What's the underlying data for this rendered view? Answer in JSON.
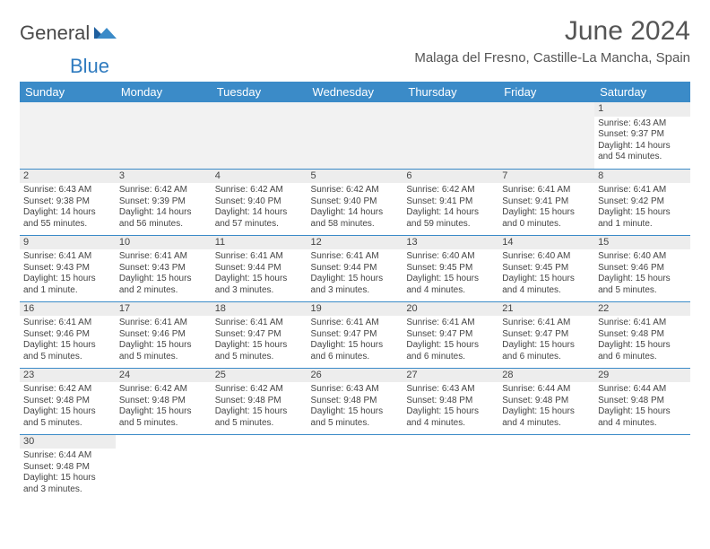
{
  "brand": {
    "name_a": "General",
    "name_b": "Blue"
  },
  "title": "June 2024",
  "location": "Malaga del Fresno, Castille-La Mancha, Spain",
  "colors": {
    "header_bg": "#3b8bc8",
    "header_fg": "#ffffff",
    "border": "#3b8bc8",
    "strip_bg": "#ededed",
    "empty_bg": "#f2f2f2",
    "text": "#444444",
    "title_text": "#555555"
  },
  "weekdays": [
    "Sunday",
    "Monday",
    "Tuesday",
    "Wednesday",
    "Thursday",
    "Friday",
    "Saturday"
  ],
  "weeks": [
    [
      null,
      null,
      null,
      null,
      null,
      null,
      {
        "d": "1",
        "sr": "Sunrise: 6:43 AM",
        "ss": "Sunset: 9:37 PM",
        "dl1": "Daylight: 14 hours",
        "dl2": "and 54 minutes."
      }
    ],
    [
      {
        "d": "2",
        "sr": "Sunrise: 6:43 AM",
        "ss": "Sunset: 9:38 PM",
        "dl1": "Daylight: 14 hours",
        "dl2": "and 55 minutes."
      },
      {
        "d": "3",
        "sr": "Sunrise: 6:42 AM",
        "ss": "Sunset: 9:39 PM",
        "dl1": "Daylight: 14 hours",
        "dl2": "and 56 minutes."
      },
      {
        "d": "4",
        "sr": "Sunrise: 6:42 AM",
        "ss": "Sunset: 9:40 PM",
        "dl1": "Daylight: 14 hours",
        "dl2": "and 57 minutes."
      },
      {
        "d": "5",
        "sr": "Sunrise: 6:42 AM",
        "ss": "Sunset: 9:40 PM",
        "dl1": "Daylight: 14 hours",
        "dl2": "and 58 minutes."
      },
      {
        "d": "6",
        "sr": "Sunrise: 6:42 AM",
        "ss": "Sunset: 9:41 PM",
        "dl1": "Daylight: 14 hours",
        "dl2": "and 59 minutes."
      },
      {
        "d": "7",
        "sr": "Sunrise: 6:41 AM",
        "ss": "Sunset: 9:41 PM",
        "dl1": "Daylight: 15 hours",
        "dl2": "and 0 minutes."
      },
      {
        "d": "8",
        "sr": "Sunrise: 6:41 AM",
        "ss": "Sunset: 9:42 PM",
        "dl1": "Daylight: 15 hours",
        "dl2": "and 1 minute."
      }
    ],
    [
      {
        "d": "9",
        "sr": "Sunrise: 6:41 AM",
        "ss": "Sunset: 9:43 PM",
        "dl1": "Daylight: 15 hours",
        "dl2": "and 1 minute."
      },
      {
        "d": "10",
        "sr": "Sunrise: 6:41 AM",
        "ss": "Sunset: 9:43 PM",
        "dl1": "Daylight: 15 hours",
        "dl2": "and 2 minutes."
      },
      {
        "d": "11",
        "sr": "Sunrise: 6:41 AM",
        "ss": "Sunset: 9:44 PM",
        "dl1": "Daylight: 15 hours",
        "dl2": "and 3 minutes."
      },
      {
        "d": "12",
        "sr": "Sunrise: 6:41 AM",
        "ss": "Sunset: 9:44 PM",
        "dl1": "Daylight: 15 hours",
        "dl2": "and 3 minutes."
      },
      {
        "d": "13",
        "sr": "Sunrise: 6:40 AM",
        "ss": "Sunset: 9:45 PM",
        "dl1": "Daylight: 15 hours",
        "dl2": "and 4 minutes."
      },
      {
        "d": "14",
        "sr": "Sunrise: 6:40 AM",
        "ss": "Sunset: 9:45 PM",
        "dl1": "Daylight: 15 hours",
        "dl2": "and 4 minutes."
      },
      {
        "d": "15",
        "sr": "Sunrise: 6:40 AM",
        "ss": "Sunset: 9:46 PM",
        "dl1": "Daylight: 15 hours",
        "dl2": "and 5 minutes."
      }
    ],
    [
      {
        "d": "16",
        "sr": "Sunrise: 6:41 AM",
        "ss": "Sunset: 9:46 PM",
        "dl1": "Daylight: 15 hours",
        "dl2": "and 5 minutes."
      },
      {
        "d": "17",
        "sr": "Sunrise: 6:41 AM",
        "ss": "Sunset: 9:46 PM",
        "dl1": "Daylight: 15 hours",
        "dl2": "and 5 minutes."
      },
      {
        "d": "18",
        "sr": "Sunrise: 6:41 AM",
        "ss": "Sunset: 9:47 PM",
        "dl1": "Daylight: 15 hours",
        "dl2": "and 5 minutes."
      },
      {
        "d": "19",
        "sr": "Sunrise: 6:41 AM",
        "ss": "Sunset: 9:47 PM",
        "dl1": "Daylight: 15 hours",
        "dl2": "and 6 minutes."
      },
      {
        "d": "20",
        "sr": "Sunrise: 6:41 AM",
        "ss": "Sunset: 9:47 PM",
        "dl1": "Daylight: 15 hours",
        "dl2": "and 6 minutes."
      },
      {
        "d": "21",
        "sr": "Sunrise: 6:41 AM",
        "ss": "Sunset: 9:47 PM",
        "dl1": "Daylight: 15 hours",
        "dl2": "and 6 minutes."
      },
      {
        "d": "22",
        "sr": "Sunrise: 6:41 AM",
        "ss": "Sunset: 9:48 PM",
        "dl1": "Daylight: 15 hours",
        "dl2": "and 6 minutes."
      }
    ],
    [
      {
        "d": "23",
        "sr": "Sunrise: 6:42 AM",
        "ss": "Sunset: 9:48 PM",
        "dl1": "Daylight: 15 hours",
        "dl2": "and 5 minutes."
      },
      {
        "d": "24",
        "sr": "Sunrise: 6:42 AM",
        "ss": "Sunset: 9:48 PM",
        "dl1": "Daylight: 15 hours",
        "dl2": "and 5 minutes."
      },
      {
        "d": "25",
        "sr": "Sunrise: 6:42 AM",
        "ss": "Sunset: 9:48 PM",
        "dl1": "Daylight: 15 hours",
        "dl2": "and 5 minutes."
      },
      {
        "d": "26",
        "sr": "Sunrise: 6:43 AM",
        "ss": "Sunset: 9:48 PM",
        "dl1": "Daylight: 15 hours",
        "dl2": "and 5 minutes."
      },
      {
        "d": "27",
        "sr": "Sunrise: 6:43 AM",
        "ss": "Sunset: 9:48 PM",
        "dl1": "Daylight: 15 hours",
        "dl2": "and 4 minutes."
      },
      {
        "d": "28",
        "sr": "Sunrise: 6:44 AM",
        "ss": "Sunset: 9:48 PM",
        "dl1": "Daylight: 15 hours",
        "dl2": "and 4 minutes."
      },
      {
        "d": "29",
        "sr": "Sunrise: 6:44 AM",
        "ss": "Sunset: 9:48 PM",
        "dl1": "Daylight: 15 hours",
        "dl2": "and 4 minutes."
      }
    ],
    [
      {
        "d": "30",
        "sr": "Sunrise: 6:44 AM",
        "ss": "Sunset: 9:48 PM",
        "dl1": "Daylight: 15 hours",
        "dl2": "and 3 minutes."
      },
      null,
      null,
      null,
      null,
      null,
      null
    ]
  ]
}
